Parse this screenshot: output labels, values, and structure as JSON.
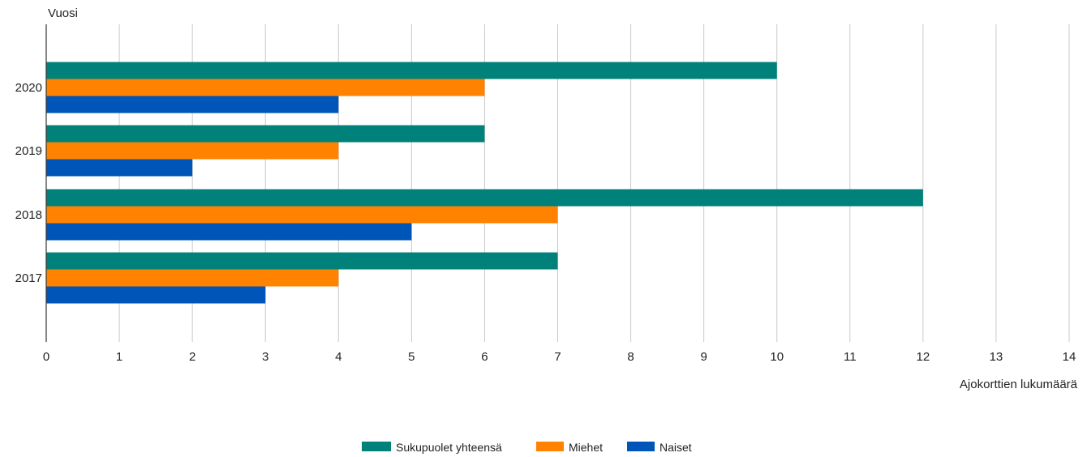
{
  "chart_data": {
    "type": "bar",
    "orientation": "horizontal",
    "ylabel": "Vuosi",
    "xlabel": "Ajokorttien lukumäärä",
    "categories": [
      "2020",
      "2019",
      "2018",
      "2017"
    ],
    "series": [
      {
        "name": "Sukupuolet yhteensä",
        "color": "#00827a",
        "values": [
          10,
          6,
          12,
          7
        ]
      },
      {
        "name": "Miehet",
        "color": "#ff8200",
        "values": [
          6,
          4,
          7,
          4
        ]
      },
      {
        "name": "Naiset",
        "color": "#0055b8",
        "values": [
          4,
          2,
          5,
          3
        ]
      }
    ],
    "xlim": [
      0,
      14
    ],
    "xticks": [
      "0",
      "1",
      "2",
      "3",
      "4",
      "5",
      "6",
      "7",
      "8",
      "9",
      "10",
      "11",
      "12",
      "13",
      "14"
    ],
    "grid": true,
    "legend_position": "bottom"
  }
}
